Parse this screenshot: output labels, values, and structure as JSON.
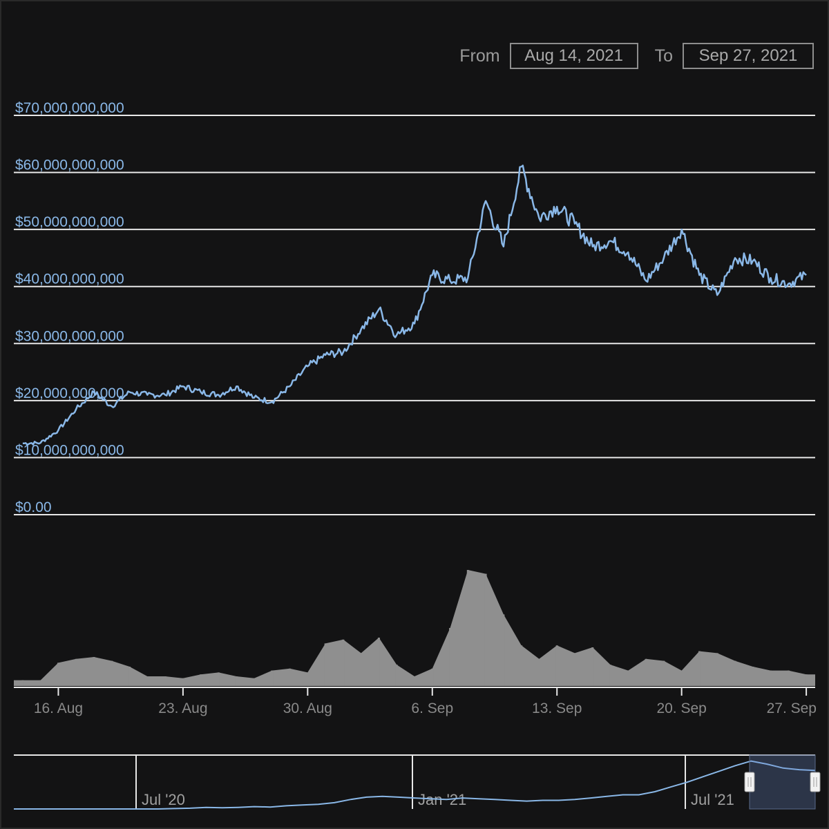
{
  "range_selector": {
    "from_label": "From",
    "from_value": "Aug 14, 2021",
    "to_label": "To",
    "to_value": "Sep 27, 2021"
  },
  "chart_data": {
    "type": "line",
    "series": [
      {
        "values_note": "Daily-ish readings of main price line",
        "x": [
          "2021-08-14",
          "2021-08-15",
          "2021-08-16",
          "2021-08-17",
          "2021-08-18",
          "2021-08-19",
          "2021-08-20",
          "2021-08-21",
          "2021-08-22",
          "2021-08-23",
          "2021-08-24",
          "2021-08-25",
          "2021-08-26",
          "2021-08-27",
          "2021-08-28",
          "2021-08-29",
          "2021-08-30",
          "2021-08-31",
          "2021-09-01",
          "2021-09-02",
          "2021-09-03",
          "2021-09-04",
          "2021-09-05",
          "2021-09-06",
          "2021-09-07",
          "2021-09-08",
          "2021-09-09",
          "2021-09-10",
          "2021-09-11",
          "2021-09-12",
          "2021-09-13",
          "2021-09-14",
          "2021-09-15",
          "2021-09-16",
          "2021-09-17",
          "2021-09-18",
          "2021-09-19",
          "2021-09-20",
          "2021-09-21",
          "2021-09-22",
          "2021-09-23",
          "2021-09-24",
          "2021-09-25",
          "2021-09-26",
          "2021-09-27"
        ],
        "values": [
          12500000000,
          12600000000,
          14800000000,
          18500000000,
          21500000000,
          19000000000,
          21500000000,
          21000000000,
          21000000000,
          22500000000,
          21500000000,
          21000000000,
          22500000000,
          20500000000,
          19800000000,
          22500000000,
          26000000000,
          28000000000,
          28500000000,
          32500000000,
          36000000000,
          31500000000,
          33500000000,
          42000000000,
          41000000000,
          41500000000,
          55000000000,
          47000000000,
          61000000000,
          52000000000,
          54000000000,
          51000000000,
          47000000000,
          48000000000,
          46000000000,
          41000000000,
          45000000000,
          50000000000,
          42000000000,
          38500000000,
          45000000000,
          44500000000,
          41500000000,
          40500000000,
          42000000000
        ]
      },
      {
        "name": "",
        "values_note": "Volume histogram below price chart (relative units)",
        "values": [
          3,
          3,
          12,
          14,
          15,
          13,
          10,
          5,
          5,
          4,
          6,
          7,
          5,
          4,
          8,
          9,
          7,
          22,
          24,
          17,
          25,
          11,
          5,
          9,
          30,
          60,
          58,
          37,
          21,
          14,
          21,
          17,
          20,
          11,
          8,
          14,
          13,
          8,
          18,
          17,
          13,
          10,
          8,
          8,
          6
        ]
      }
    ],
    "ylabels": [
      "$70,000,000,000",
      "$60,000,000,000",
      "$50,000,000,000",
      "$40,000,000,000",
      "$30,000,000,000",
      "$20,000,000,000",
      "$10,000,000,000",
      "$0.00"
    ],
    "ylim": [
      0,
      70000000000
    ],
    "xticks": [
      "16. Aug",
      "23. Aug",
      "30. Aug",
      "6. Sep",
      "13. Sep",
      "20. Sep",
      "27. Sep"
    ],
    "navigator": {
      "labels": [
        "Jul '20",
        "Jan '21",
        "Jul '21"
      ],
      "values": [
        0,
        0,
        0,
        0,
        0,
        0,
        0,
        0,
        0,
        0,
        0.5,
        1,
        2,
        1.5,
        2,
        3,
        2.5,
        4,
        5,
        6,
        8,
        12,
        15,
        16,
        15,
        14,
        13,
        12,
        14,
        13,
        12,
        11,
        10,
        11,
        11,
        12,
        14,
        16,
        18,
        18,
        22,
        28,
        34,
        41,
        48,
        55,
        61,
        57,
        52,
        50,
        49
      ]
    },
    "colors": {
      "line": "#8ab8e8",
      "axis_label": "#8ab8e8",
      "grid": "#e8e8e8",
      "volume": "#8f8f8f",
      "tick_label": "#8a8a8a"
    }
  }
}
